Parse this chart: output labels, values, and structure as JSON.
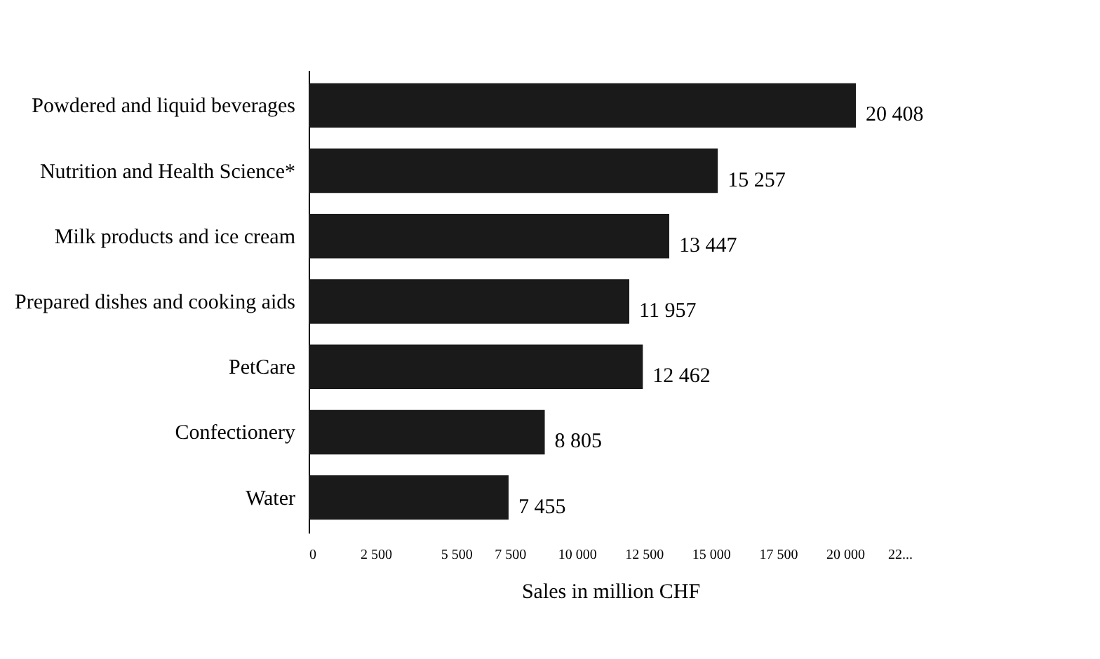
{
  "chart_data": {
    "type": "bar",
    "orientation": "horizontal",
    "xlabel": "Sales in million CHF",
    "categories": [
      "Powdered and liquid beverages",
      "Nutrition and Health Science*",
      "Milk products and ice cream",
      "Prepared dishes and cooking aids",
      "PetCare",
      "Confectionery",
      "Water"
    ],
    "values": [
      20408,
      15257,
      13447,
      11957,
      12462,
      8805,
      7455
    ],
    "value_labels": [
      "20 408",
      "15 257",
      "13 447",
      "11 957",
      "12 462",
      "8 805",
      "7 455"
    ],
    "color": "#1a1a1a",
    "xlim": [
      0,
      22500
    ],
    "xticks": [
      0,
      {
        "value": 2500,
        "label": "2 500"
      },
      {
        "value": 5500,
        "label": "5 500"
      },
      {
        "value": 7500,
        "label": "7 500"
      },
      {
        "value": 10000,
        "label": "10 000"
      },
      {
        "value": 12500,
        "label": "12 500"
      },
      {
        "value": 15000,
        "label": "15 000"
      },
      {
        "value": 17500,
        "label": "17 500"
      },
      {
        "value": 20000,
        "label": "20 000"
      },
      {
        "value": 22500,
        "label": "22..."
      }
    ],
    "grid": false
  }
}
